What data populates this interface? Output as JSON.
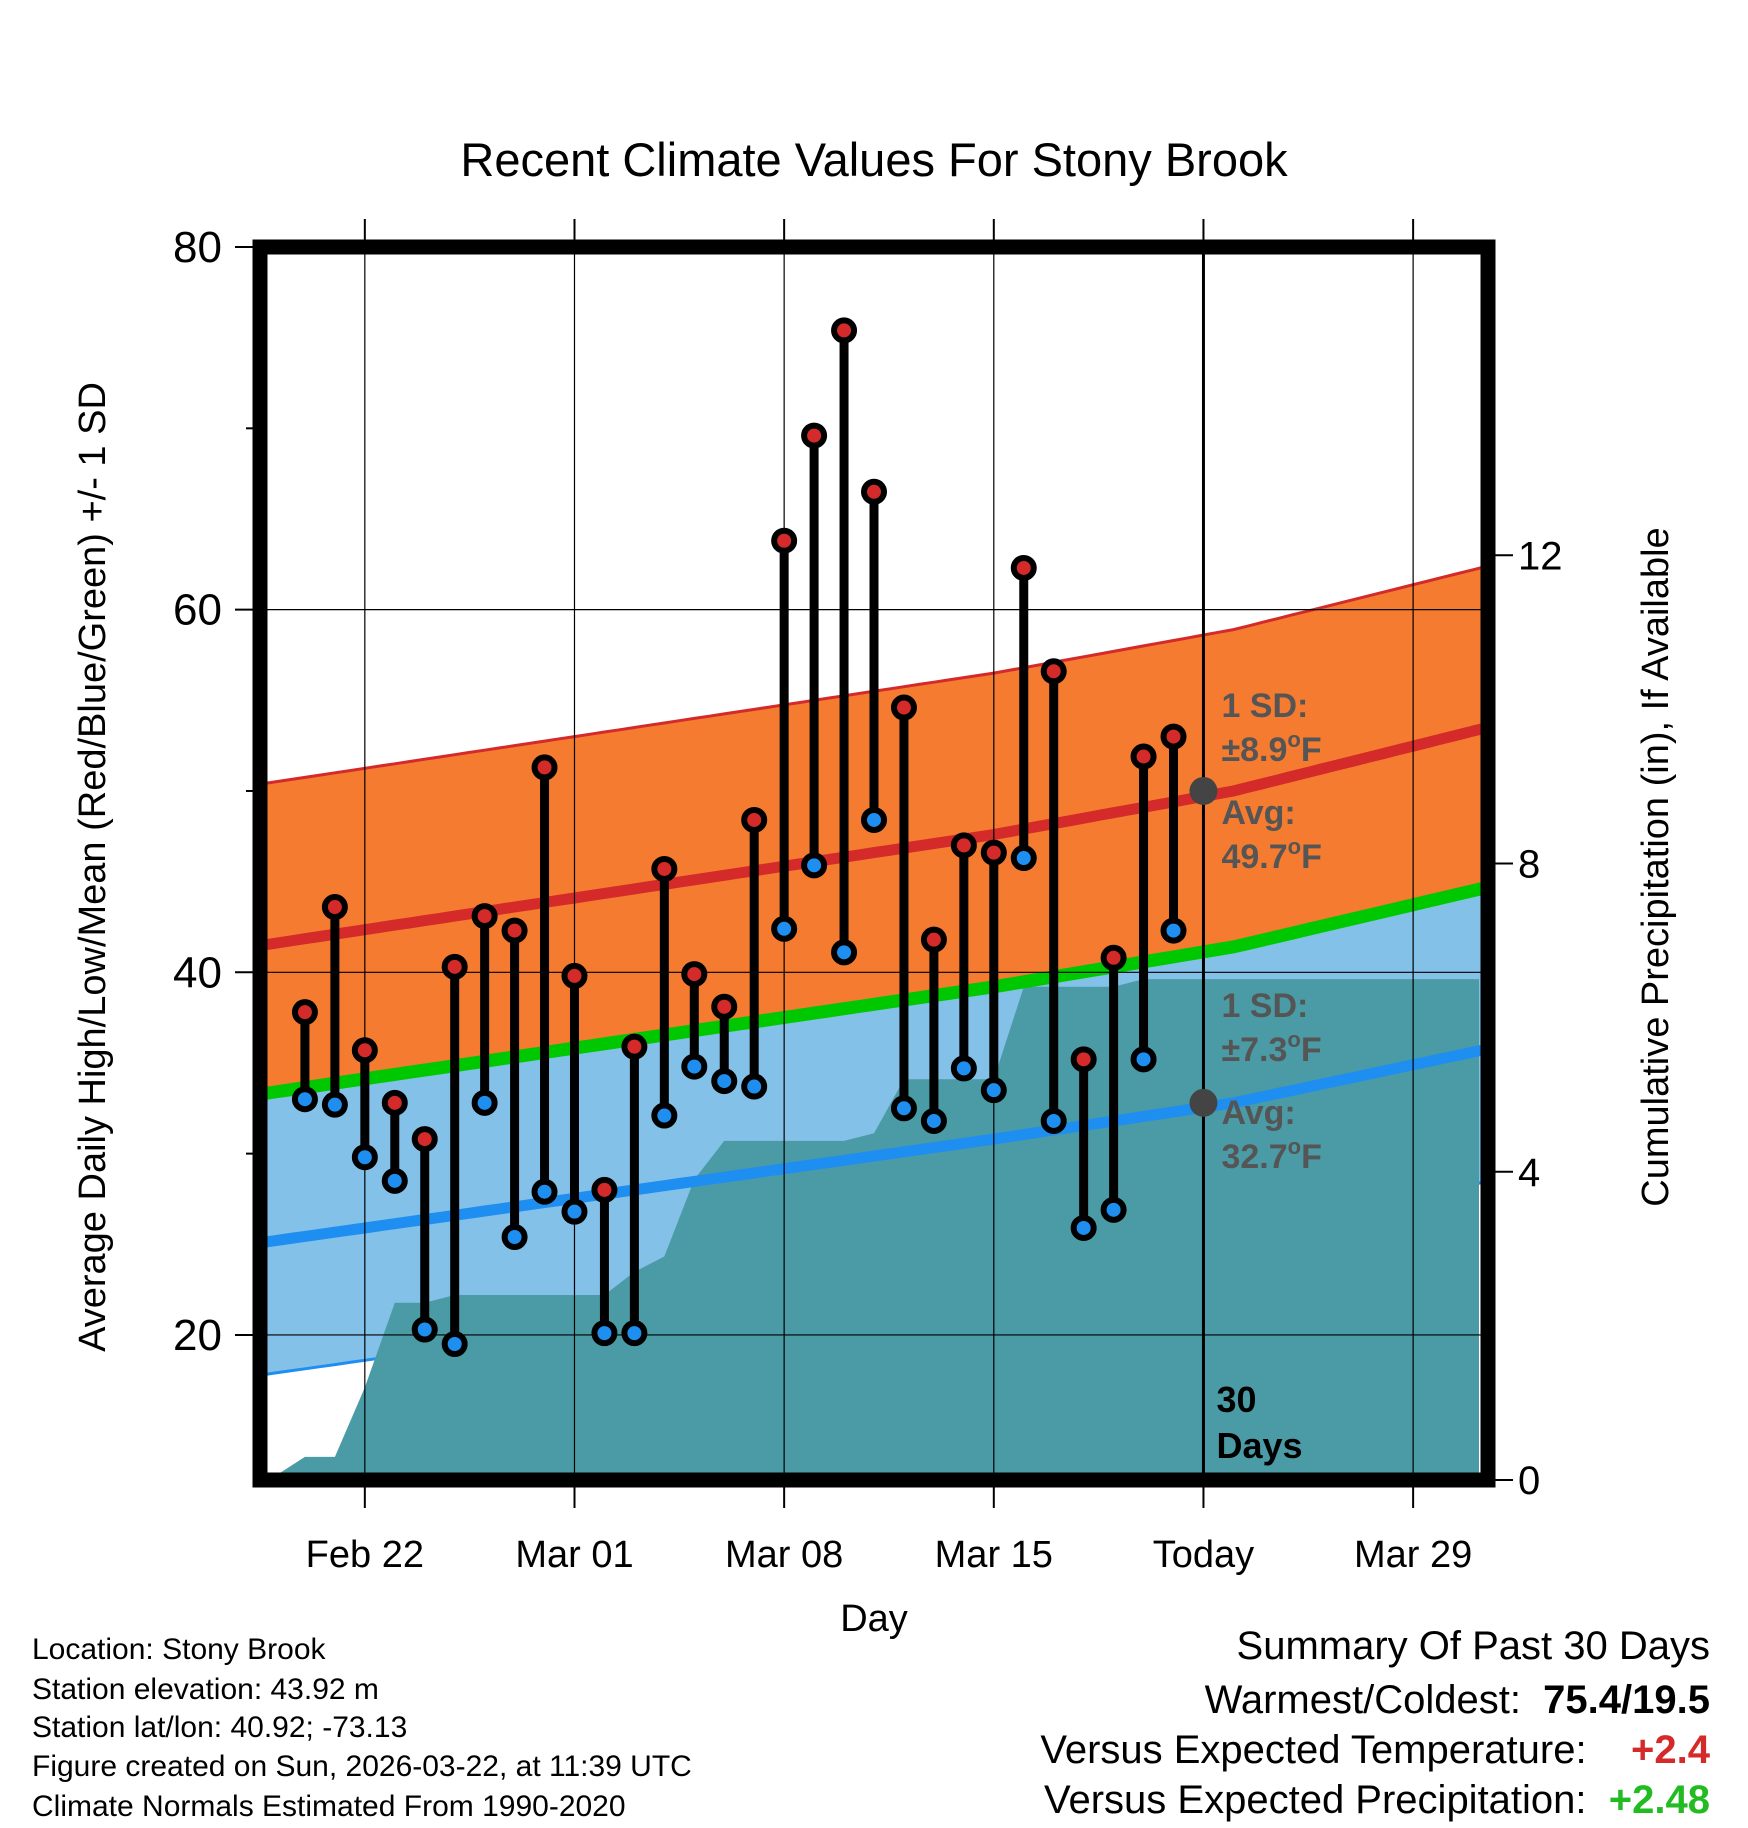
{
  "chart_data": {
    "type": "line",
    "title": "Recent Climate Values For Stony Brook",
    "xlabel": "Day",
    "ylabel": "Average Daily High/Low/Mean (Red/Blue/Green) +/- 1 SD",
    "y2label": "Cumulative Precipitation (in), If Available",
    "ylim": [
      12,
      80
    ],
    "y2lim": [
      0,
      16
    ],
    "xlim": [
      -1.5,
      39.5
    ],
    "y_ticks": [
      20,
      40,
      60,
      80
    ],
    "y_minor_ticks": [
      30,
      50,
      70
    ],
    "y2_ticks": [
      0,
      4,
      8,
      12
    ],
    "x_ticks": [
      {
        "day": 2,
        "label": "Feb 22"
      },
      {
        "day": 9,
        "label": "Mar 01"
      },
      {
        "day": 16,
        "label": "Mar 08"
      },
      {
        "day": 23,
        "label": "Mar 15"
      },
      {
        "day": 30,
        "label": "Today"
      },
      {
        "day": 37,
        "label": "Mar 29"
      }
    ],
    "today_day": 30,
    "window_label": [
      "30",
      "Days"
    ],
    "normals": {
      "days": [
        -1,
        11,
        23,
        31,
        39
      ],
      "high_avg": [
        41.6,
        44.6,
        47.6,
        50.0,
        53.3
      ],
      "high_plus_sd": [
        50.5,
        53.5,
        56.5,
        58.9,
        62.2
      ],
      "low_avg": [
        25.2,
        28.0,
        30.8,
        32.8,
        35.6
      ],
      "low_minus_sd": [
        17.9,
        20.7,
        23.5,
        25.5,
        28.3
      ],
      "mean_avg": [
        33.4,
        36.3,
        39.2,
        41.4,
        44.5
      ]
    },
    "series": [
      {
        "name": "Daily High",
        "color": "#d42a2a",
        "days": [
          0,
          1,
          2,
          3,
          4,
          5,
          6,
          7,
          8,
          9,
          10,
          11,
          12,
          13,
          14,
          15,
          16,
          17,
          18,
          19,
          20,
          21,
          22,
          23,
          24,
          25,
          26,
          27,
          28,
          29
        ],
        "values": [
          37.8,
          43.6,
          35.7,
          32.8,
          30.8,
          40.3,
          43.1,
          42.3,
          51.3,
          39.8,
          28.0,
          35.9,
          45.7,
          39.9,
          38.1,
          48.4,
          63.8,
          69.6,
          75.4,
          66.5,
          54.6,
          41.8,
          47.0,
          46.6,
          62.3,
          56.6,
          35.2,
          40.8,
          51.9,
          53.0
        ]
      },
      {
        "name": "Daily Low",
        "color": "#1e8ff0",
        "days": [
          0,
          1,
          2,
          3,
          4,
          5,
          6,
          7,
          8,
          9,
          10,
          11,
          12,
          13,
          14,
          15,
          16,
          17,
          18,
          19,
          20,
          21,
          22,
          23,
          24,
          25,
          26,
          27,
          28,
          29
        ],
        "values": [
          33.0,
          32.7,
          29.8,
          28.5,
          20.3,
          19.5,
          32.8,
          25.4,
          27.9,
          26.8,
          20.1,
          20.1,
          32.1,
          34.8,
          34.0,
          33.7,
          42.4,
          45.9,
          41.1,
          48.4,
          32.5,
          31.8,
          34.7,
          33.5,
          46.3,
          31.8,
          25.9,
          26.9,
          35.2,
          42.3
        ]
      },
      {
        "name": "Cumulative Precipitation",
        "color": "#4a9ba5",
        "days": [
          -1.2,
          0,
          1,
          2,
          3,
          4,
          5,
          6,
          7,
          8,
          9,
          10,
          11,
          12,
          13,
          14,
          15,
          16,
          17,
          18,
          19,
          20,
          21,
          22,
          23,
          24,
          25,
          26,
          27,
          28,
          29,
          30,
          39.2
        ],
        "values": [
          0,
          0.3,
          0.3,
          1.2,
          2.3,
          2.3,
          2.4,
          2.4,
          2.4,
          2.4,
          2.4,
          2.4,
          2.7,
          2.9,
          3.9,
          4.4,
          4.4,
          4.4,
          4.4,
          4.4,
          4.5,
          5.2,
          5.2,
          5.2,
          5.2,
          6.4,
          6.4,
          6.4,
          6.4,
          6.5,
          6.5,
          6.5,
          6.5
        ]
      }
    ],
    "annotations": {
      "high": {
        "sd_label": "1 SD:",
        "sd_value": "±8.9",
        "avg_label": "Avg:",
        "avg_value": "49.7",
        "unit_o": "o",
        "unit_f": "F"
      },
      "low": {
        "sd_label": "1 SD:",
        "sd_value": "±7.3",
        "avg_label": "Avg:",
        "avg_value": "32.7",
        "unit_o": "o",
        "unit_f": "F"
      }
    },
    "colors": {
      "high_band": "#f47b30",
      "high_line": "#d42a2a",
      "low_band": "#84c1e8",
      "low_line": "#1e8ff0",
      "mean_line": "#00c800",
      "precip": "#4a9ba5",
      "annotation": "#555555",
      "today_marker": "#444444"
    }
  },
  "info": {
    "location": "Location: Stony Brook",
    "elevation": "Station elevation: 43.92 m",
    "latlon": "Station lat/lon: 40.92; -73.13",
    "created": "Figure created on Sun, 2026-03-22, at 11:39 UTC",
    "normals_period": "Climate Normals Estimated From 1990-2020"
  },
  "summary": {
    "heading": "Summary Of Past 30 Days",
    "warm_cold_label": "Warmest/Coldest:",
    "warm_cold_value": "75.4/19.5",
    "temp_label": "Versus Expected Temperature:",
    "temp_value": "+2.4",
    "precip_label": "Versus Expected Precipitation:",
    "precip_value": "+2.48"
  }
}
